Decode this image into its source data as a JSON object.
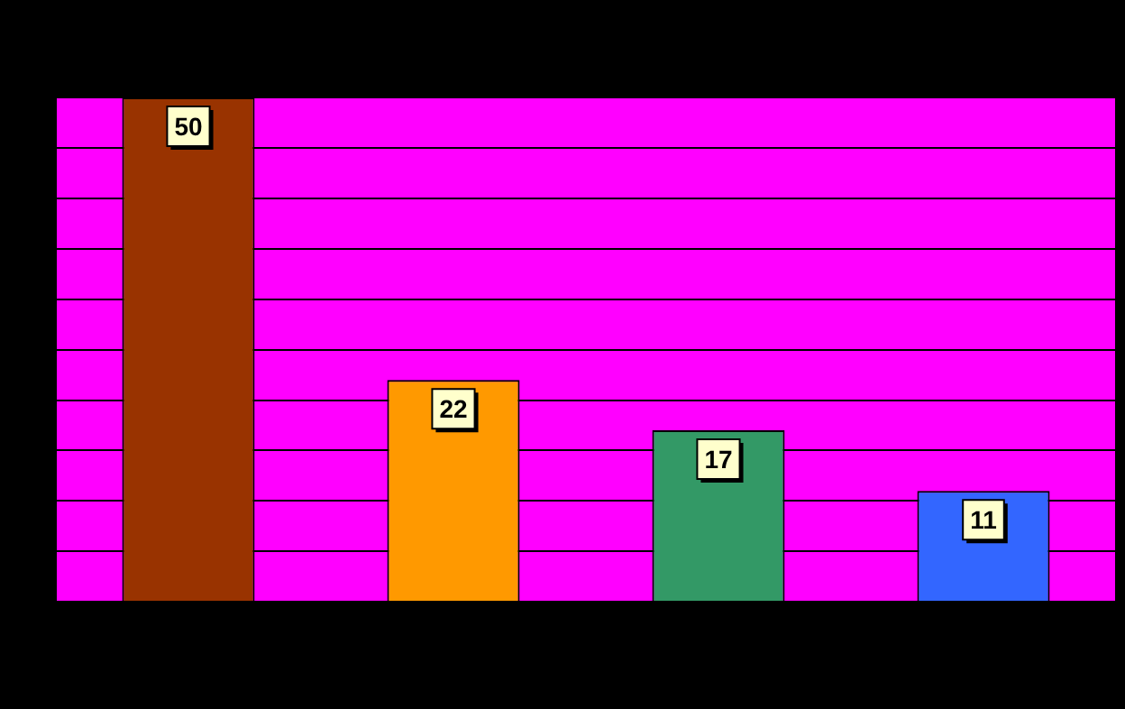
{
  "chart_data": {
    "type": "bar",
    "categories": [
      null,
      null,
      null,
      null
    ],
    "values": [
      50,
      22,
      17,
      11
    ],
    "colors": [
      "#993300",
      "#ff9900",
      "#339966",
      "#3366ff"
    ],
    "ylim": [
      0,
      50
    ],
    "yticks": [
      {
        "value": 0,
        "label": null
      },
      {
        "value": 5,
        "label": null
      },
      {
        "value": 10,
        "label": null
      },
      {
        "value": 15,
        "label": null
      },
      {
        "value": 20,
        "label": null
      },
      {
        "value": 25,
        "label": null
      },
      {
        "value": 30,
        "label": null
      },
      {
        "value": 35,
        "label": null
      },
      {
        "value": 40,
        "label": null
      },
      {
        "value": 45,
        "label": null
      },
      {
        "value": 50,
        "label": null
      }
    ],
    "grid": "y",
    "data_labels": true
  }
}
